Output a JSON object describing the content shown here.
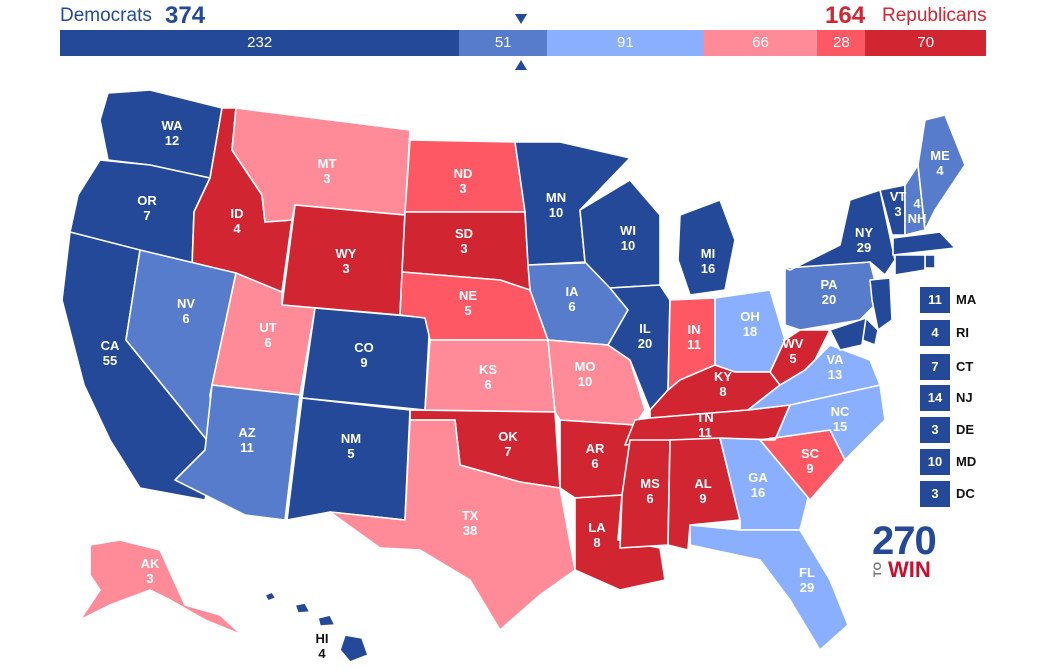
{
  "header": {
    "dem_label": "Democrats",
    "dem_total": "374",
    "rep_total": "164",
    "rep_label": "Republicans",
    "bar_segments": [
      {
        "label": "232",
        "value": 232,
        "color": "#244999"
      },
      {
        "label": "51",
        "value": 51,
        "color": "#577ccc"
      },
      {
        "label": "91",
        "value": 91,
        "color": "#8aafff"
      },
      {
        "label": "66",
        "value": 66,
        "color": "#ff8b98"
      },
      {
        "label": "28",
        "value": 28,
        "color": "#ff5865"
      },
      {
        "label": "70",
        "value": 70,
        "color": "#d22532"
      }
    ]
  },
  "colors": {
    "safe_dem": "#244999",
    "likely_dem": "#577ccc",
    "lean_dem": "#8aafff",
    "lean_rep": "#ff8b98",
    "likely_rep": "#ff5865",
    "safe_rep": "#d22532"
  },
  "states": {
    "WA": {
      "abbr": "WA",
      "ev": "12"
    },
    "OR": {
      "abbr": "OR",
      "ev": "7"
    },
    "CA": {
      "abbr": "CA",
      "ev": "55"
    },
    "ID": {
      "abbr": "ID",
      "ev": "4"
    },
    "NV": {
      "abbr": "NV",
      "ev": "6"
    },
    "MT": {
      "abbr": "MT",
      "ev": "3"
    },
    "WY": {
      "abbr": "WY",
      "ev": "3"
    },
    "UT": {
      "abbr": "UT",
      "ev": "6"
    },
    "AZ": {
      "abbr": "AZ",
      "ev": "11"
    },
    "CO": {
      "abbr": "CO",
      "ev": "9"
    },
    "NM": {
      "abbr": "NM",
      "ev": "5"
    },
    "ND": {
      "abbr": "ND",
      "ev": "3"
    },
    "SD": {
      "abbr": "SD",
      "ev": "3"
    },
    "NE": {
      "abbr": "NE",
      "ev": "5"
    },
    "KS": {
      "abbr": "KS",
      "ev": "6"
    },
    "OK": {
      "abbr": "OK",
      "ev": "7"
    },
    "TX": {
      "abbr": "TX",
      "ev": "38"
    },
    "MN": {
      "abbr": "MN",
      "ev": "10"
    },
    "IA": {
      "abbr": "IA",
      "ev": "6"
    },
    "MO": {
      "abbr": "MO",
      "ev": "10"
    },
    "AR": {
      "abbr": "AR",
      "ev": "6"
    },
    "LA": {
      "abbr": "LA",
      "ev": "8"
    },
    "WI": {
      "abbr": "WI",
      "ev": "10"
    },
    "IL": {
      "abbr": "IL",
      "ev": "20"
    },
    "MI": {
      "abbr": "MI",
      "ev": "16"
    },
    "IN": {
      "abbr": "IN",
      "ev": "11"
    },
    "OH": {
      "abbr": "OH",
      "ev": "18"
    },
    "KY": {
      "abbr": "KY",
      "ev": "8"
    },
    "TN": {
      "abbr": "TN",
      "ev": "11"
    },
    "MS": {
      "abbr": "MS",
      "ev": "6"
    },
    "AL": {
      "abbr": "AL",
      "ev": "9"
    },
    "GA": {
      "abbr": "GA",
      "ev": "16"
    },
    "FL": {
      "abbr": "FL",
      "ev": "29"
    },
    "SC": {
      "abbr": "SC",
      "ev": "9"
    },
    "NC": {
      "abbr": "NC",
      "ev": "15"
    },
    "VA": {
      "abbr": "VA",
      "ev": "13"
    },
    "WV": {
      "abbr": "WV",
      "ev": "5"
    },
    "PA": {
      "abbr": "PA",
      "ev": "20"
    },
    "NY": {
      "abbr": "NY",
      "ev": "29"
    },
    "VT": {
      "abbr": "VT",
      "ev": "3"
    },
    "NH": {
      "abbr": "NH",
      "ev": "4"
    },
    "ME": {
      "abbr": "ME",
      "ev": "4"
    },
    "AK": {
      "abbr": "AK",
      "ev": "3"
    },
    "HI": {
      "abbr": "HI",
      "ev": "4"
    }
  },
  "small_states": [
    {
      "abbr": "MA",
      "ev": "11"
    },
    {
      "abbr": "RI",
      "ev": "4"
    },
    {
      "abbr": "CT",
      "ev": "7"
    },
    {
      "abbr": "NJ",
      "ev": "14"
    },
    {
      "abbr": "DE",
      "ev": "3"
    },
    {
      "abbr": "MD",
      "ev": "10"
    },
    {
      "abbr": "DC",
      "ev": "3"
    }
  ],
  "logo": {
    "number": "270",
    "to": "TO",
    "win": "WIN"
  }
}
